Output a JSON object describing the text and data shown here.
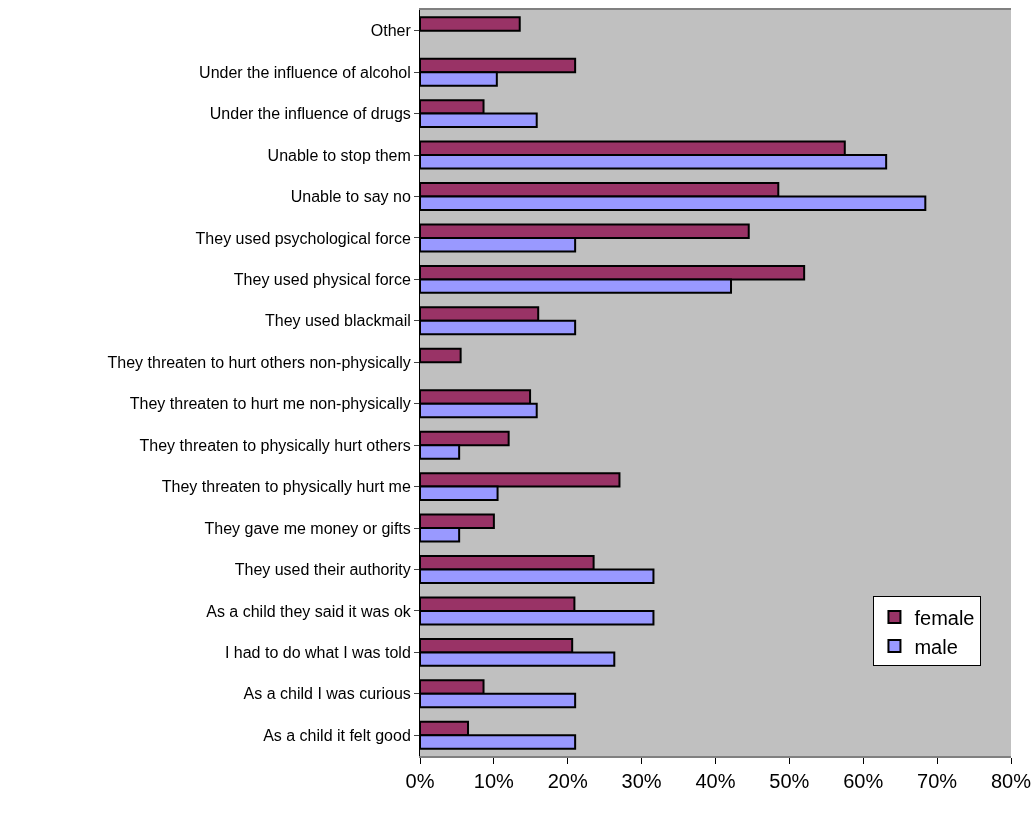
{
  "chart_data": {
    "type": "bar",
    "orientation": "horizontal",
    "categories": [
      "Other",
      "Under the influence of alcohol",
      "Under the influence of drugs",
      "Unable to stop them",
      "Unable to say no",
      "They used psychological force",
      "They used physical force",
      "They used blackmail",
      "They threaten to hurt others non-physically",
      "They threaten to hurt me non-physically",
      "They threaten to physically hurt others",
      "They threaten to physically hurt me",
      "They gave me money or gifts",
      "They used their authority",
      "As a child they said it was ok",
      "I had to do what I was told",
      "As a child I was curious",
      "As a child it felt good"
    ],
    "series": [
      {
        "name": "female",
        "color": "#993366",
        "values": [
          13.5,
          21.0,
          8.6,
          57.5,
          48.5,
          44.5,
          52.0,
          16.0,
          5.5,
          14.9,
          12.0,
          27.0,
          10.0,
          23.5,
          20.9,
          20.6,
          8.6,
          6.5
        ]
      },
      {
        "name": "male",
        "color": "#9999ff",
        "values": [
          null,
          10.4,
          15.8,
          63.1,
          68.4,
          21.0,
          42.1,
          21.0,
          null,
          15.8,
          5.3,
          10.5,
          5.3,
          31.6,
          31.6,
          26.3,
          21.0,
          21.0
        ]
      }
    ],
    "xlim": [
      0,
      80
    ],
    "xticks": [
      {
        "value": 0,
        "label": "0%"
      },
      {
        "value": 10,
        "label": "10%"
      },
      {
        "value": 20,
        "label": "20%"
      },
      {
        "value": 30,
        "label": "30%"
      },
      {
        "value": 40,
        "label": "40%"
      },
      {
        "value": 50,
        "label": "50%"
      },
      {
        "value": 60,
        "label": "60%"
      },
      {
        "value": 70,
        "label": "70%"
      },
      {
        "value": 80,
        "label": "80%"
      }
    ],
    "grid": false,
    "legend": "bottom right"
  }
}
